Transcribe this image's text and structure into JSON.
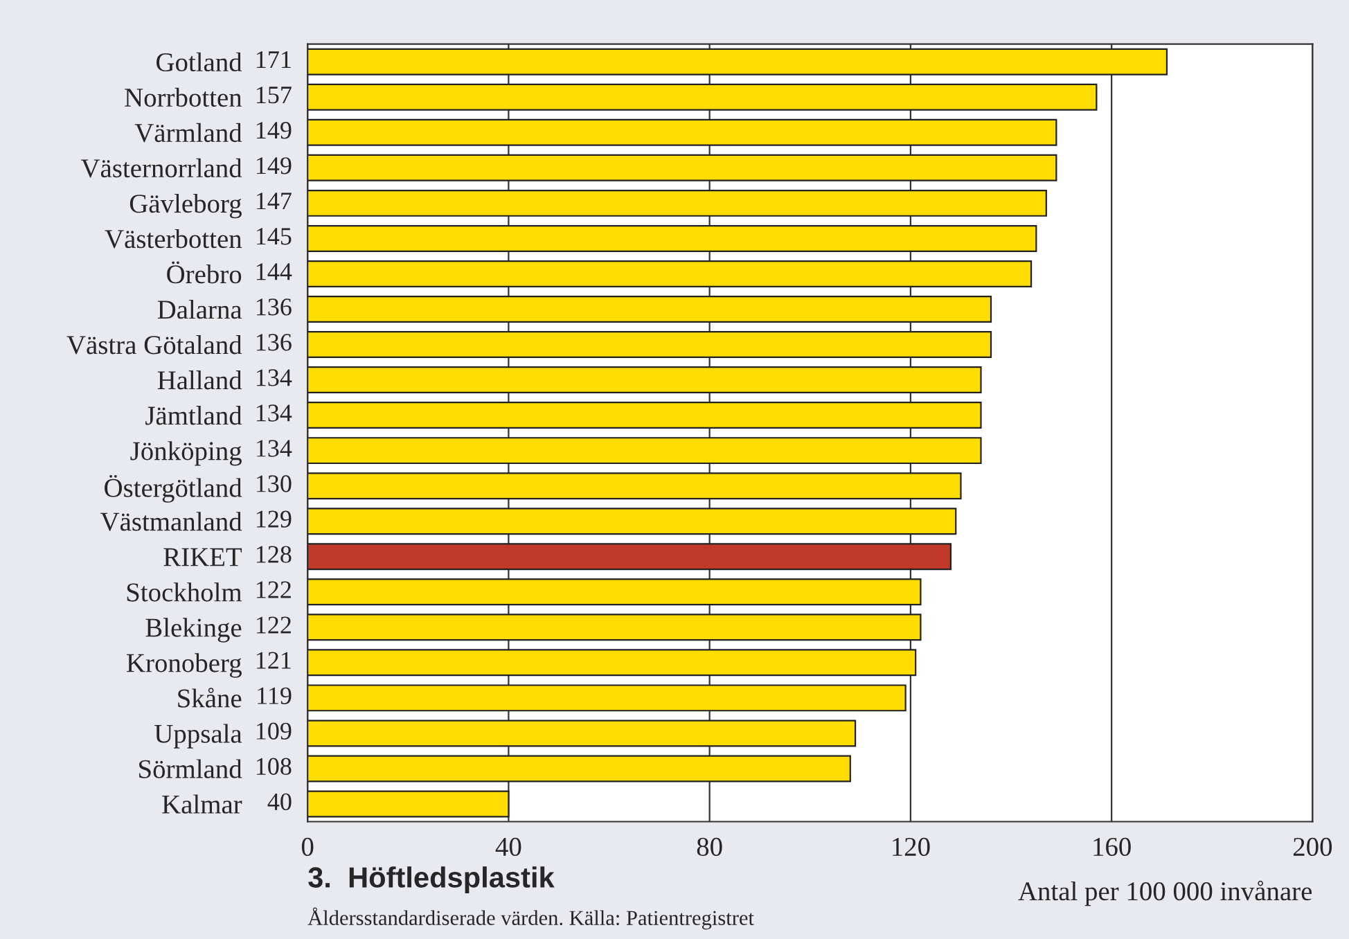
{
  "chart_data": {
    "type": "bar",
    "orientation": "horizontal",
    "title": "3.  Höftledsplastik",
    "xlabel": "Antal per 100 000 invånare",
    "annotations": [
      "Åldersstandardiserade värden. Källa: Patientregistret"
    ],
    "categories": [
      "Gotland",
      "Norrbotten",
      "Värmland",
      "Västernorrland",
      "Gävleborg",
      "Västerbotten",
      "Örebro",
      "Dalarna",
      "Västra Götaland",
      "Halland",
      "Jämtland",
      "Jönköping",
      "Östergötland",
      "Västmanland",
      "RIKET",
      "Stockholm",
      "Blekinge",
      "Kronoberg",
      "Skåne",
      "Uppsala",
      "Sörmland",
      "Kalmar"
    ],
    "values": [
      171,
      157,
      149,
      149,
      147,
      145,
      144,
      136,
      136,
      134,
      134,
      134,
      130,
      129,
      128,
      122,
      122,
      121,
      119,
      109,
      108,
      40
    ],
    "colors": [
      "#ffdd00",
      "#ffdd00",
      "#ffdd00",
      "#ffdd00",
      "#ffdd00",
      "#ffdd00",
      "#ffdd00",
      "#ffdd00",
      "#ffdd00",
      "#ffdd00",
      "#ffdd00",
      "#ffdd00",
      "#ffdd00",
      "#ffdd00",
      "#c0392b",
      "#ffdd00",
      "#ffdd00",
      "#ffdd00",
      "#ffdd00",
      "#ffdd00",
      "#ffdd00",
      "#ffdd00"
    ],
    "xlim": [
      0,
      200
    ],
    "xticks": [
      0,
      40,
      80,
      120,
      160,
      200
    ],
    "grid": "x",
    "data_labels": true
  }
}
